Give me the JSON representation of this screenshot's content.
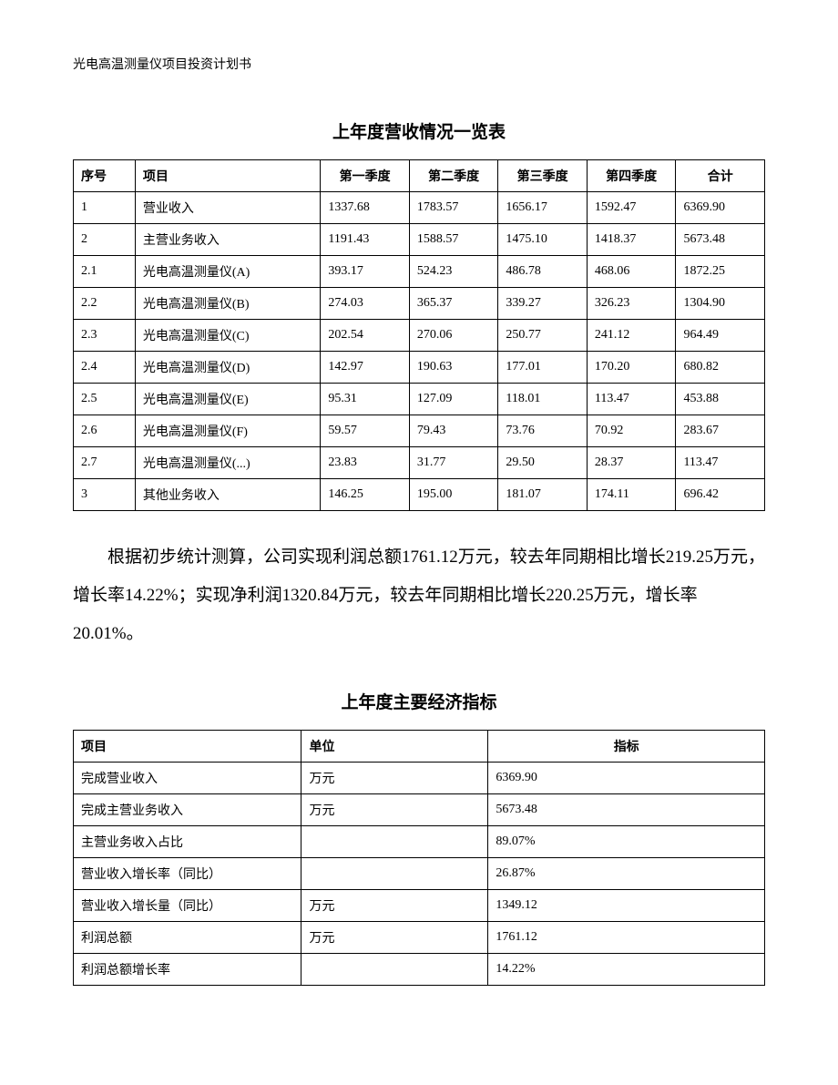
{
  "header": "光电高温测量仪项目投资计划书",
  "table1": {
    "title": "上年度营收情况一览表",
    "columns": [
      "序号",
      "项目",
      "第一季度",
      "第二季度",
      "第三季度",
      "第四季度",
      "合计"
    ],
    "rows": [
      [
        "1",
        "营业收入",
        "1337.68",
        "1783.57",
        "1656.17",
        "1592.47",
        "6369.90"
      ],
      [
        "2",
        "主营业务收入",
        "1191.43",
        "1588.57",
        "1475.10",
        "1418.37",
        "5673.48"
      ],
      [
        "2.1",
        "光电高温测量仪(A)",
        "393.17",
        "524.23",
        "486.78",
        "468.06",
        "1872.25"
      ],
      [
        "2.2",
        "光电高温测量仪(B)",
        "274.03",
        "365.37",
        "339.27",
        "326.23",
        "1304.90"
      ],
      [
        "2.3",
        "光电高温测量仪(C)",
        "202.54",
        "270.06",
        "250.77",
        "241.12",
        "964.49"
      ],
      [
        "2.4",
        "光电高温测量仪(D)",
        "142.97",
        "190.63",
        "177.01",
        "170.20",
        "680.82"
      ],
      [
        "2.5",
        "光电高温测量仪(E)",
        "95.31",
        "127.09",
        "118.01",
        "113.47",
        "453.88"
      ],
      [
        "2.6",
        "光电高温测量仪(F)",
        "59.57",
        "79.43",
        "73.76",
        "70.92",
        "283.67"
      ],
      [
        "2.7",
        "光电高温测量仪(...)",
        "23.83",
        "31.77",
        "29.50",
        "28.37",
        "113.47"
      ],
      [
        "3",
        "其他业务收入",
        "146.25",
        "195.00",
        "181.07",
        "174.11",
        "696.42"
      ]
    ]
  },
  "paragraph": "根据初步统计测算，公司实现利润总额1761.12万元，较去年同期相比增长219.25万元，增长率14.22%；实现净利润1320.84万元，较去年同期相比增长220.25万元，增长率20.01%。",
  "table2": {
    "title": "上年度主要经济指标",
    "columns": [
      "项目",
      "单位",
      "指标"
    ],
    "rows": [
      [
        "完成营业收入",
        "万元",
        "6369.90"
      ],
      [
        "完成主营业务收入",
        "万元",
        "5673.48"
      ],
      [
        "主营业务收入占比",
        "",
        "89.07%"
      ],
      [
        "营业收入增长率（同比）",
        "",
        "26.87%"
      ],
      [
        "营业收入增长量（同比）",
        "万元",
        "1349.12"
      ],
      [
        "利润总额",
        "万元",
        "1761.12"
      ],
      [
        "利润总额增长率",
        "",
        "14.22%"
      ]
    ]
  }
}
